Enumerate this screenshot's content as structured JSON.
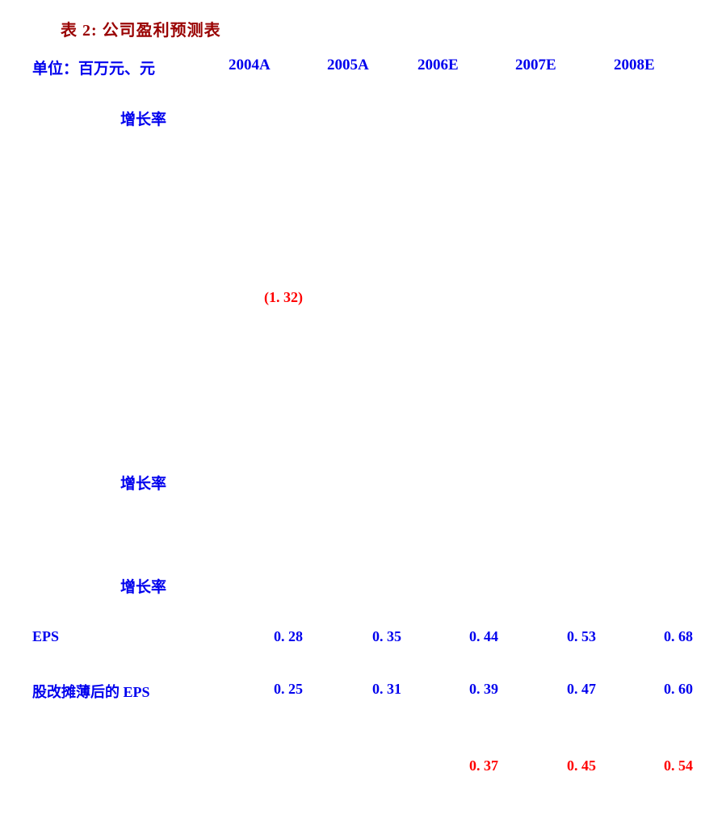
{
  "page": {
    "title": "表 2: 公司盈利预测表"
  },
  "table": {
    "unit_label": "单位：百万元、元",
    "columns": [
      "2004A",
      "2005A",
      "2006E",
      "2007E",
      "2008E"
    ],
    "rows": {
      "growth_rate_1": {
        "label": "增长率"
      },
      "paren_value": {
        "value": "(1. 32)"
      },
      "growth_rate_2": {
        "label": "增长率"
      },
      "growth_rate_3": {
        "label": "增长率"
      },
      "eps": {
        "label": "EPS",
        "values": [
          "0. 28",
          "0. 35",
          "0. 44",
          "0. 53",
          "0. 68"
        ]
      },
      "diluted_eps": {
        "label": "股改摊薄后的 EPS",
        "values": [
          "0. 25",
          "0. 31",
          "0. 39",
          "0. 47",
          "0. 60"
        ]
      },
      "bottom_red_row": {
        "values": [
          "0. 37",
          "0. 45",
          "0. 54"
        ]
      }
    }
  },
  "colors": {
    "title_red": "#990000",
    "highlight_red": "#FF0000",
    "text_blue": "#0000EE",
    "background": "#FFFFFF"
  }
}
